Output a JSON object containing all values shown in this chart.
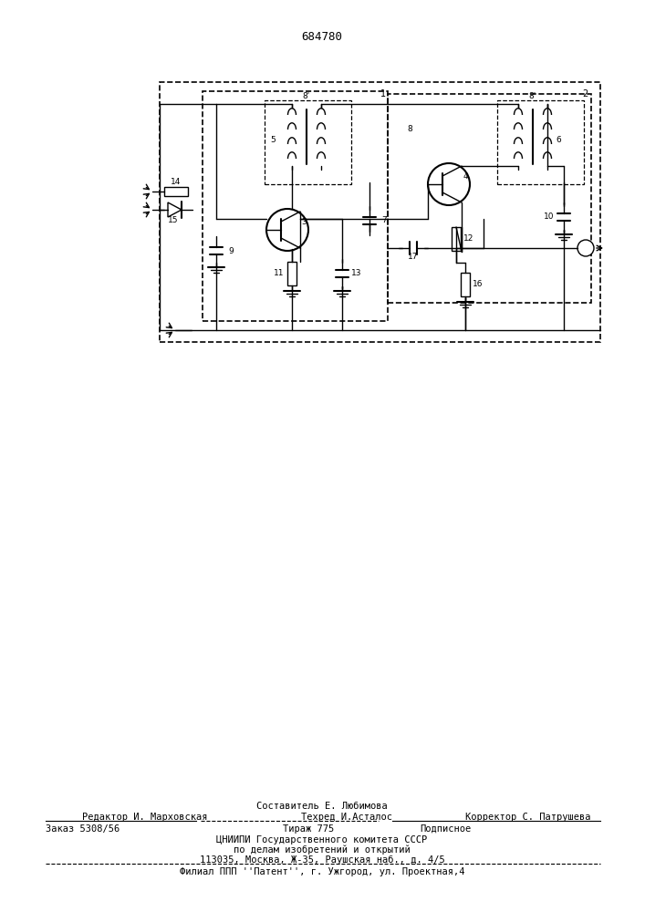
{
  "title": "684780",
  "bg_color": "#ffffff",
  "line_color": "#000000",
  "footer": {
    "sestavitel": "Составитель Е. Любимова",
    "redaktor": "Редактор И. Марховская",
    "tehred": "Техред И.Асталос",
    "korrektor": "Корректор С. Патрушева",
    "zakaz": "Заказ 5308/56",
    "tirazh": "Тираж 775",
    "podpisnoe": "Подписное",
    "cniipи": "ЦНИИПИ Государственного комитета СССР",
    "po_delam": "по делам изобретений и открытий",
    "address": "113035, Москва, Ж-35, Раушская наб., д. 4/5",
    "filial": "Филиал ППП ''Патент'', г. Ужгород, ул. Проектная,4"
  }
}
